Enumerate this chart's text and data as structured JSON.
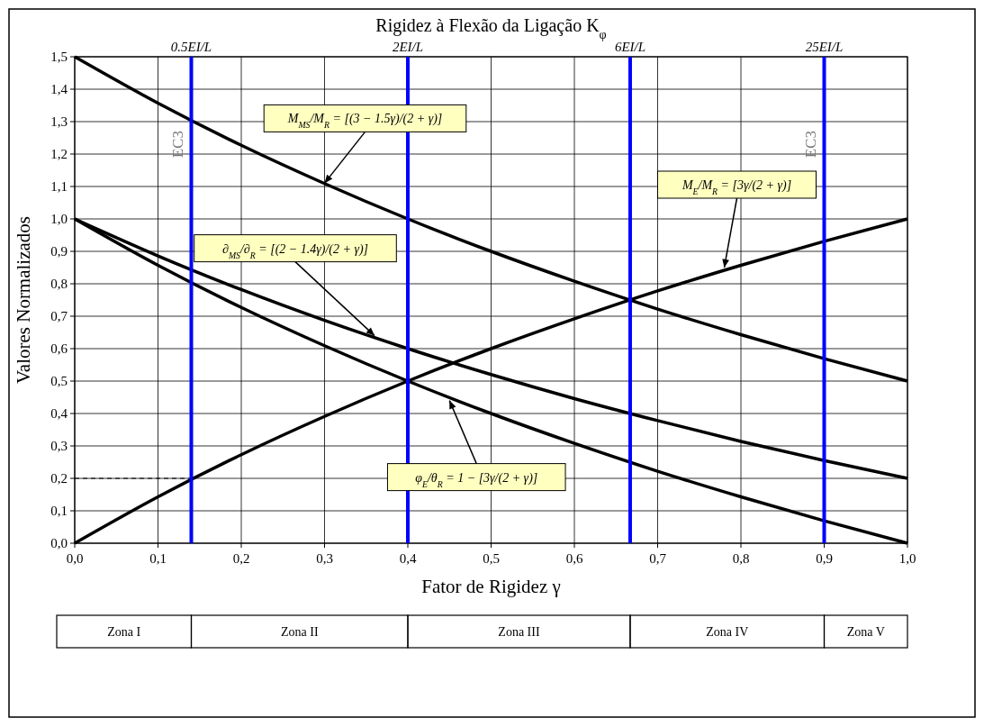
{
  "chart_data": {
    "type": "line",
    "title": "Rigidez à Flexão da Ligação K$_{φ}$",
    "xlabel": "Fator de Rigidez  γ",
    "ylabel": "Valores Normalizados",
    "x": [
      0,
      0.1,
      0.2,
      0.3,
      0.4,
      0.5,
      0.6,
      0.7,
      0.8,
      0.9,
      1
    ],
    "series": [
      {
        "color": "#000000",
        "values": [
          1.5,
          1.357,
          1.227,
          1.109,
          1.0,
          0.9,
          0.808,
          0.722,
          0.643,
          0.569,
          0.5
        ]
      },
      {
        "color": "#000000",
        "values": [
          1.0,
          0.886,
          0.782,
          0.687,
          0.6,
          0.52,
          0.446,
          0.378,
          0.314,
          0.255,
          0.2
        ]
      },
      {
        "color": "#000000",
        "values": [
          0,
          0.143,
          0.273,
          0.391,
          0.5,
          0.6,
          0.692,
          0.778,
          0.857,
          0.931,
          1.0
        ]
      },
      {
        "color": "#000000",
        "values": [
          1.0,
          0.857,
          0.727,
          0.609,
          0.5,
          0.4,
          0.308,
          0.222,
          0.143,
          0.069,
          0
        ]
      },
      {
        "color": "#000000",
        "x": [
          0,
          0.14
        ],
        "values": [
          0.2,
          0.2
        ],
        "line_style": "dashed"
      }
    ],
    "xlim": [
      0,
      1
    ],
    "ylim": [
      0,
      1.5
    ],
    "xticks": [
      {
        "value": 0,
        "label": "0,0"
      },
      {
        "value": 0.1,
        "label": "0,1"
      },
      {
        "value": 0.2,
        "label": "0,2"
      },
      {
        "value": 0.3,
        "label": "0,3"
      },
      {
        "value": 0.4,
        "label": "0,4"
      },
      {
        "value": 0.5,
        "label": "0,5"
      },
      {
        "value": 0.6,
        "label": "0,6"
      },
      {
        "value": 0.7,
        "label": "0,7"
      },
      {
        "value": 0.8,
        "label": "0,8"
      },
      {
        "value": 0.9,
        "label": "0,9"
      },
      {
        "value": 1,
        "label": "1,0"
      }
    ],
    "yticks": [
      {
        "value": 0,
        "label": "0,0"
      },
      {
        "value": 0.1,
        "label": "0,1"
      },
      {
        "value": 0.2,
        "label": "0,2"
      },
      {
        "value": 0.3,
        "label": "0,3"
      },
      {
        "value": 0.4,
        "label": "0,4"
      },
      {
        "value": 0.5,
        "label": "0,5"
      },
      {
        "value": 0.6,
        "label": "0,6"
      },
      {
        "value": 0.7,
        "label": "0,7"
      },
      {
        "value": 0.8,
        "label": "0,8"
      },
      {
        "value": 0.9,
        "label": "0,9"
      },
      {
        "value": 1,
        "label": "1,0"
      },
      {
        "value": 1.1,
        "label": "1,1"
      },
      {
        "value": 1.2,
        "label": "1,2"
      },
      {
        "value": 1.3,
        "label": "1,3"
      },
      {
        "value": 1.4,
        "label": "1,4"
      },
      {
        "value": 1.5,
        "label": "1,5"
      }
    ],
    "grid": true,
    "marker": "none",
    "line_style": "solid",
    "ref_lines": [
      {
        "axis": "x",
        "value": 0.14,
        "label": "0.5EI/L",
        "color": "#0000ff"
      },
      {
        "axis": "x",
        "value": 0.4,
        "label": "2EI/L",
        "color": "#0000ff"
      },
      {
        "axis": "x",
        "value": 0.667,
        "label": "6EI/L",
        "color": "#0000ff"
      },
      {
        "axis": "x",
        "value": 0.9,
        "label": "25EI/L",
        "color": "#0000ff"
      }
    ],
    "annotations": [
      {
        "text": "M$_{MS}$/M$_{R}$ = [(3 − 1.5γ)/(2 + γ)]",
        "x": 0.3,
        "y": 1.11
      },
      {
        "text": "∂$_{MS}$/∂$_{R}$ = [(2 − 1.4γ)/(2 + γ)]",
        "x": 0.36,
        "y": 0.64
      },
      {
        "text": "M$_{E}$/M$_{R}$ = [3γ/(2 + γ)]",
        "x": 0.78,
        "y": 0.85
      },
      {
        "text": "φ$_{E}$/θ$_{R}$ = 1 − [3γ/(2 + γ)]",
        "x": 0.45,
        "y": 0.44
      },
      "EC3",
      "EC3",
      "Zona I",
      "Zona II",
      "Zona III",
      "Zona IV",
      "Zona V"
    ]
  }
}
